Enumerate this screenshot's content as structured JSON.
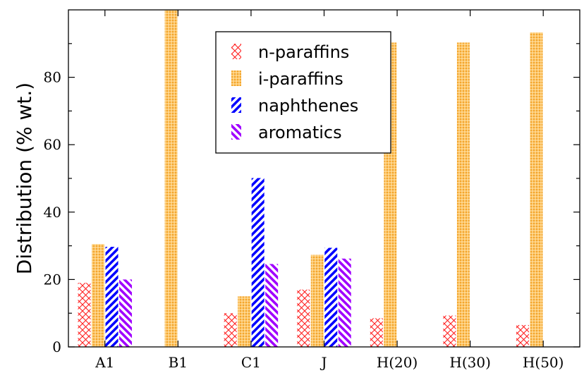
{
  "chart_data": {
    "type": "bar",
    "title": "",
    "xlabel": "",
    "ylabel": "Distribution (% wt.)",
    "ylim": [
      0,
      100
    ],
    "yticks": [
      0,
      20,
      40,
      60,
      80
    ],
    "grid": false,
    "legend_position": "top-center",
    "categories": [
      "A1",
      "B1",
      "C1",
      "J",
      "H(20)",
      "H(30)",
      "H(50)"
    ],
    "series": [
      {
        "name": "n-paraffins",
        "color": "#ff0000",
        "pattern": "crosshatch",
        "values": [
          19,
          0,
          10,
          17,
          8.5,
          9.3,
          6.5
        ]
      },
      {
        "name": "i-paraffins",
        "color": "#ffc04d",
        "pattern": "dots",
        "values": [
          30.5,
          100,
          15,
          27.3,
          90.3,
          90.3,
          93.3
        ]
      },
      {
        "name": "naphthenes",
        "color": "#0000ff",
        "pattern": "diagonal-right",
        "values": [
          29.7,
          0,
          50.1,
          29.4,
          0,
          0,
          0
        ]
      },
      {
        "name": "aromatics",
        "color": "#a000ff",
        "pattern": "diagonal-left",
        "values": [
          20,
          0,
          24.6,
          26.2,
          0,
          0,
          0
        ]
      }
    ]
  }
}
